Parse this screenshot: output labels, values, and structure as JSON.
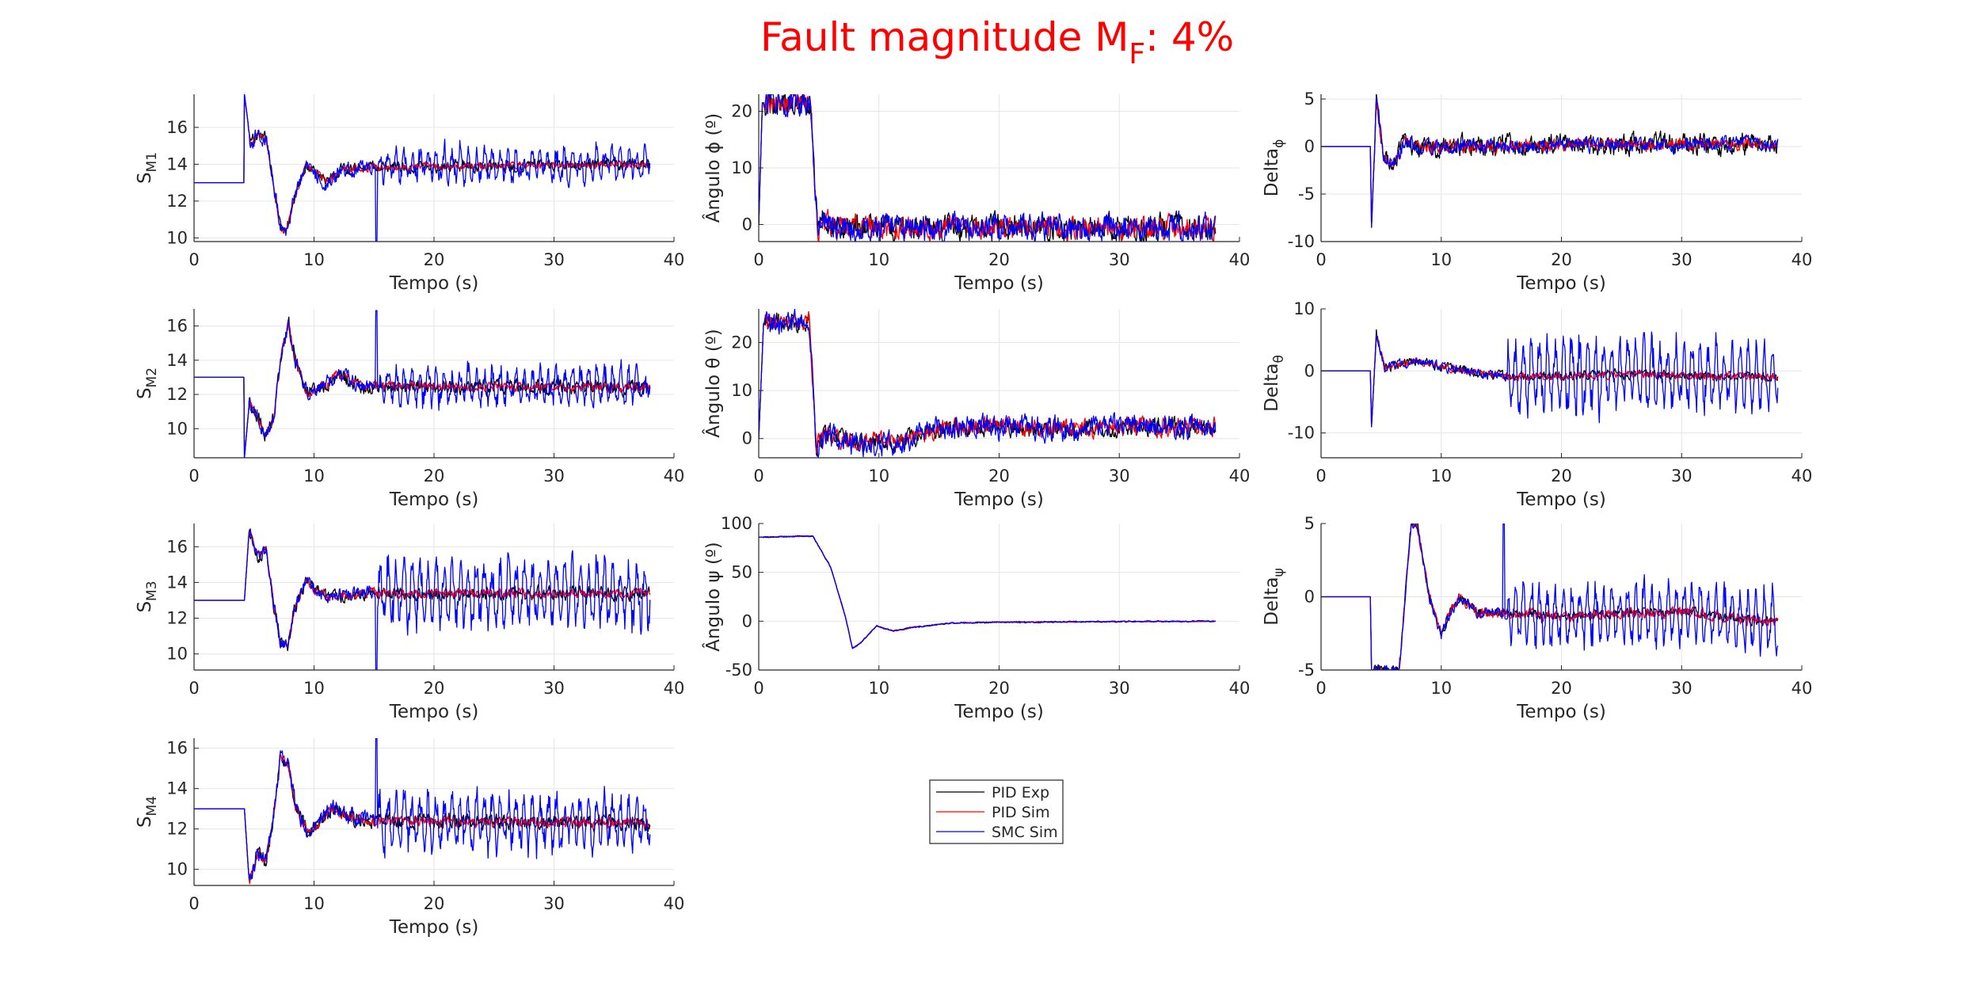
{
  "figure": {
    "title_main": "Fault magnitude M",
    "title_sub": "F",
    "title_tail": ": 4%",
    "title_color": "#ff0000"
  },
  "legend": {
    "entries": [
      {
        "label": "PID Exp",
        "color": "#000000"
      },
      {
        "label": "PID Sim",
        "color": "#ff0000"
      },
      {
        "label": "SMC Sim",
        "color": "#0000ff"
      }
    ]
  },
  "chart_data": [
    {
      "id": "sm1",
      "type": "line",
      "ylabel_main": "S",
      "ylabel_sub": "M1",
      "xlabel": "Tempo (s)",
      "xlim": [
        0,
        40
      ],
      "ylim": [
        9.8,
        17.8
      ],
      "xticks": [
        0,
        10,
        20,
        30,
        40
      ],
      "yticks": [
        10,
        12,
        14,
        16
      ],
      "grid": true,
      "pre": 13,
      "step": 4.2,
      "tr": [
        [
          4.2,
          17.8
        ],
        [
          4.7,
          15.2
        ],
        [
          5.3,
          15.6
        ],
        [
          6.0,
          15.4
        ],
        [
          6.6,
          13.0
        ],
        [
          7.2,
          10.5
        ],
        [
          7.7,
          10.4
        ],
        [
          8.3,
          12.0
        ],
        [
          9.3,
          13.9
        ],
        [
          10.1,
          13.6
        ],
        [
          11.0,
          13.0
        ],
        [
          12.3,
          13.7
        ],
        [
          14.0,
          13.8
        ],
        [
          20,
          13.9
        ],
        [
          38,
          14.0
        ]
      ],
      "steady": 13.85,
      "amp": {
        "black": 0.25,
        "red": 0.15,
        "blue": 0.35
      },
      "late": 15.1,
      "lateAmp": 1.0,
      "spike": [
        15.2,
        9.8
      ]
    },
    {
      "id": "phi",
      "type": "line",
      "ylabel_main": "Ângulo ϕ (º)",
      "ylabel_sub": "",
      "xlabel": "Tempo (s)",
      "xlim": [
        0,
        40
      ],
      "ylim": [
        -3,
        23
      ],
      "xticks": [
        0,
        10,
        20,
        30,
        40
      ],
      "yticks": [
        0,
        10,
        20
      ],
      "grid": true,
      "pre": 0,
      "step": 0.1,
      "tr": [
        [
          0,
          0
        ],
        [
          0.3,
          21.5
        ],
        [
          4.3,
          21.5
        ],
        [
          4.9,
          -1
        ],
        [
          5.4,
          0.8
        ],
        [
          6.5,
          -0.5
        ],
        [
          38,
          -0.5
        ]
      ],
      "steady": -0.5,
      "amp": {
        "black": 1.8,
        "red": 1.6,
        "blue": 1.9
      },
      "late": 99,
      "lateAmp": 0,
      "spike": null
    },
    {
      "id": "dphi",
      "type": "line",
      "ylabel_main": "Delta",
      "ylabel_sub": "ϕ",
      "xlabel": "Tempo (s)",
      "xlim": [
        0,
        40
      ],
      "ylim": [
        -10,
        5.5
      ],
      "xticks": [
        0,
        10,
        20,
        30,
        40
      ],
      "yticks": [
        -10,
        -5,
        0,
        5
      ],
      "grid": true,
      "pre": 0,
      "step": 4.1,
      "tr": [
        [
          4.1,
          0
        ],
        [
          4.2,
          -8.5
        ],
        [
          4.6,
          5
        ],
        [
          5.2,
          -1
        ],
        [
          6.0,
          -2
        ],
        [
          7.0,
          0.5
        ],
        [
          8,
          0
        ],
        [
          38,
          0.3
        ]
      ],
      "steady": 0.2,
      "amp": {
        "black": 0.9,
        "red": 0.5,
        "blue": 0.6
      },
      "late": 99,
      "lateAmp": 0,
      "spike": null
    },
    {
      "id": "sm2",
      "type": "line",
      "ylabel_main": "S",
      "ylabel_sub": "M2",
      "xlabel": "Tempo (s)",
      "xlim": [
        0,
        40
      ],
      "ylim": [
        8.3,
        17
      ],
      "xticks": [
        0,
        10,
        20,
        30,
        40
      ],
      "yticks": [
        10,
        12,
        14,
        16
      ],
      "grid": true,
      "pre": 13,
      "step": 4.2,
      "tr": [
        [
          4.2,
          8.3
        ],
        [
          4.6,
          11.5
        ],
        [
          5.3,
          10.8
        ],
        [
          5.9,
          9.6
        ],
        [
          6.6,
          10.5
        ],
        [
          7.3,
          14.5
        ],
        [
          7.9,
          16.1
        ],
        [
          8.5,
          13.8
        ],
        [
          9.5,
          12.0
        ],
        [
          11.0,
          12.6
        ],
        [
          12.0,
          13.2
        ],
        [
          14.0,
          12.5
        ],
        [
          38,
          12.4
        ]
      ],
      "steady": 12.4,
      "amp": {
        "black": 0.35,
        "red": 0.2,
        "blue": 0.35
      },
      "late": 15.1,
      "lateAmp": 1.3,
      "spike": [
        15.2,
        16.9
      ]
    },
    {
      "id": "theta",
      "type": "line",
      "ylabel_main": "Ângulo θ (º)",
      "ylabel_sub": "",
      "xlabel": "Tempo (s)",
      "xlim": [
        0,
        40
      ],
      "ylim": [
        -4,
        27
      ],
      "xticks": [
        0,
        10,
        20,
        30,
        40
      ],
      "yticks": [
        0,
        10,
        20
      ],
      "grid": true,
      "pre": 0,
      "step": 0.1,
      "tr": [
        [
          0,
          0
        ],
        [
          0.4,
          24
        ],
        [
          4.2,
          24.5
        ],
        [
          4.8,
          -2
        ],
        [
          5.5,
          1
        ],
        [
          8,
          -1
        ],
        [
          12,
          -0.5
        ],
        [
          15,
          2
        ],
        [
          20,
          2.5
        ],
        [
          26,
          2
        ],
        [
          30,
          2.5
        ],
        [
          38,
          2.5
        ]
      ],
      "steady": 2.5,
      "amp": {
        "black": 1.5,
        "red": 1.5,
        "blue": 2.0
      },
      "late": 99,
      "lateAmp": 0,
      "spike": null
    },
    {
      "id": "dtheta",
      "type": "line",
      "ylabel_main": "Delta",
      "ylabel_sub": "θ",
      "xlabel": "Tempo (s)",
      "xlim": [
        0,
        40
      ],
      "ylim": [
        -14,
        10
      ],
      "xticks": [
        0,
        10,
        20,
        30,
        40
      ],
      "yticks": [
        -10,
        0,
        10
      ],
      "grid": true,
      "pre": 0,
      "step": 4.1,
      "tr": [
        [
          4.1,
          0
        ],
        [
          4.2,
          -9
        ],
        [
          4.6,
          6
        ],
        [
          5.3,
          0.5
        ],
        [
          8,
          1.5
        ],
        [
          12,
          0
        ],
        [
          16,
          -1
        ],
        [
          25,
          -0.5
        ],
        [
          38,
          -1
        ]
      ],
      "steady": -0.8,
      "amp": {
        "black": 0.6,
        "red": 0.5,
        "blue": 0.6
      },
      "late": 15.5,
      "lateAmp": 7.0,
      "spike": null
    },
    {
      "id": "sm3",
      "type": "line",
      "ylabel_main": "S",
      "ylabel_sub": "M3",
      "xlabel": "Tempo (s)",
      "xlim": [
        0,
        40
      ],
      "ylim": [
        9.1,
        17.3
      ],
      "xticks": [
        0,
        10,
        20,
        30,
        40
      ],
      "yticks": [
        10,
        12,
        14,
        16
      ],
      "grid": true,
      "pre": 13,
      "step": 4.2,
      "tr": [
        [
          4.2,
          13
        ],
        [
          4.6,
          17.0
        ],
        [
          5.3,
          15.5
        ],
        [
          6.0,
          15.8
        ],
        [
          6.6,
          13.0
        ],
        [
          7.2,
          10.6
        ],
        [
          7.8,
          10.5
        ],
        [
          8.4,
          12.5
        ],
        [
          9.3,
          14.2
        ],
        [
          10.1,
          13.6
        ],
        [
          11.2,
          13.2
        ],
        [
          14.0,
          13.4
        ],
        [
          38,
          13.4
        ]
      ],
      "steady": 13.4,
      "amp": {
        "black": 0.3,
        "red": 0.2,
        "blue": 0.3
      },
      "late": 15.1,
      "lateAmp": 2.3,
      "spike": [
        15.2,
        9.1
      ]
    },
    {
      "id": "psi",
      "type": "line",
      "ylabel_main": "Ângulo ψ (º)",
      "ylabel_sub": "",
      "xlabel": "Tempo (s)",
      "xlim": [
        0,
        40
      ],
      "ylim": [
        -50,
        100
      ],
      "xticks": [
        0,
        10,
        20,
        30,
        40
      ],
      "yticks": [
        -50,
        0,
        50,
        100
      ],
      "grid": true,
      "pre": 87,
      "step": 0,
      "tr": [
        [
          0,
          86
        ],
        [
          4.5,
          87
        ],
        [
          6,
          55
        ],
        [
          7.2,
          5
        ],
        [
          7.8,
          -28
        ],
        [
          8.5,
          -22
        ],
        [
          9.8,
          -5
        ],
        [
          11.2,
          -10
        ],
        [
          13,
          -6
        ],
        [
          16,
          -2
        ],
        [
          20,
          -1
        ],
        [
          38,
          0
        ]
      ],
      "steady": 0,
      "amp": {
        "black": 0.4,
        "red": 0.4,
        "blue": 0.6
      },
      "late": 99,
      "lateAmp": 0,
      "spike": null
    },
    {
      "id": "dpsi",
      "type": "line",
      "ylabel_main": "Delta",
      "ylabel_sub": "ψ",
      "xlabel": "Tempo (s)",
      "xlim": [
        0,
        40
      ],
      "ylim": [
        -5,
        5
      ],
      "xticks": [
        0,
        10,
        20,
        30,
        40
      ],
      "yticks": [
        -5,
        0,
        5
      ],
      "grid": true,
      "pre": 0,
      "step": 4.1,
      "tr": [
        [
          4.1,
          0
        ],
        [
          4.2,
          -5
        ],
        [
          6.5,
          -5
        ],
        [
          7.1,
          1
        ],
        [
          7.5,
          5
        ],
        [
          8,
          5
        ],
        [
          9.0,
          0
        ],
        [
          10,
          -2.5
        ],
        [
          10.8,
          -1
        ],
        [
          11.5,
          0
        ],
        [
          13,
          -1
        ],
        [
          20,
          -1.3
        ],
        [
          30,
          -1
        ],
        [
          38,
          -1.8
        ]
      ],
      "steady": -1.3,
      "amp": {
        "black": 0.25,
        "red": 0.3,
        "blue": 0.3
      },
      "late": 15.5,
      "lateAmp": 2.5,
      "spike": [
        15.2,
        5
      ]
    },
    {
      "id": "sm4",
      "type": "line",
      "ylabel_main": "S",
      "ylabel_sub": "M4",
      "xlabel": "Tempo (s)",
      "xlim": [
        0,
        40
      ],
      "ylim": [
        9.2,
        16.5
      ],
      "xticks": [
        0,
        10,
        20,
        30,
        40
      ],
      "yticks": [
        10,
        12,
        14,
        16
      ],
      "grid": true,
      "pre": 13,
      "step": 4.2,
      "tr": [
        [
          4.2,
          13
        ],
        [
          4.6,
          9.3
        ],
        [
          5.3,
          10.8
        ],
        [
          6.0,
          10.3
        ],
        [
          6.6,
          12.5
        ],
        [
          7.2,
          15.6
        ],
        [
          7.9,
          15.0
        ],
        [
          8.5,
          13.0
        ],
        [
          9.5,
          11.8
        ],
        [
          10.8,
          12.6
        ],
        [
          11.5,
          13.0
        ],
        [
          14.0,
          12.4
        ],
        [
          38,
          12.3
        ]
      ],
      "steady": 12.3,
      "amp": {
        "black": 0.3,
        "red": 0.2,
        "blue": 0.35
      },
      "late": 15.1,
      "lateAmp": 1.7,
      "spike": [
        15.2,
        16.5
      ]
    }
  ]
}
